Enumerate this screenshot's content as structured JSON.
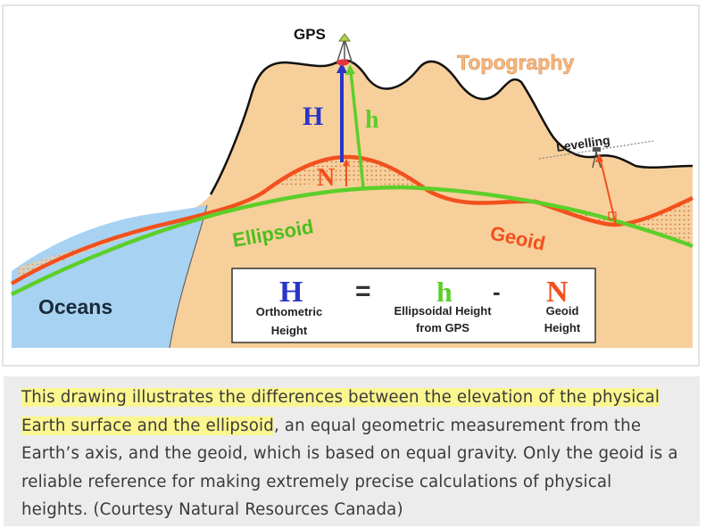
{
  "figure": {
    "labels": {
      "gps": "GPS",
      "topography": "Topography",
      "levelling": "Levelling",
      "ellipsoid": "Ellipsoid",
      "geoid": "Geoid",
      "oceans": "Oceans",
      "H": "H",
      "h": "h",
      "N": "N"
    },
    "equation": {
      "H": "H",
      "equals": "=",
      "h": "h",
      "minus": "-",
      "N": "N",
      "H_caption_1": "Orthometric",
      "H_caption_2": "Height",
      "h_caption_1": "Ellipsoidal Height",
      "h_caption_2": "from GPS",
      "N_caption_1": "Geoid",
      "N_caption_2": "Height"
    },
    "colors": {
      "land": "#f7cf9a",
      "ocean": "#a8d2f2",
      "ellipsoid": "#5ccf2a",
      "geoid": "#f2501e",
      "orthometric": "#2a35c7",
      "topography_label": "#f6b880",
      "outline": "#111111"
    }
  },
  "caption": {
    "highlighted": "This drawing illustrates the differences between the elevation of the physical Earth surface and the ellipsoid",
    "rest": ", an equal geometric measurement from the Earth’s axis, and the geoid, which is based on equal gravity. Only the geoid is a reliable reference for making extremely precise calculations of physical heights. (Courtesy Natural Resources Canada)"
  }
}
